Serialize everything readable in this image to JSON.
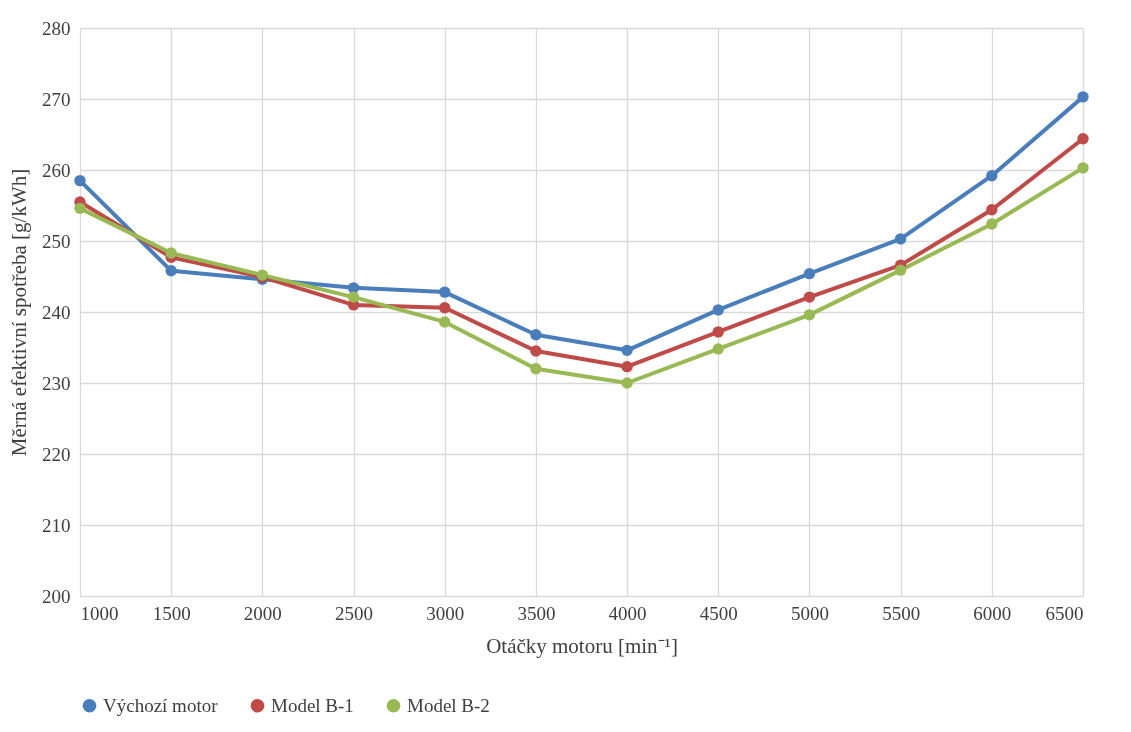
{
  "chart_data": {
    "type": "line",
    "xlabel": "Otáčky motoru [min⁻¹]",
    "ylabel": "Měrná efektivní spotřeba [g/kWh]",
    "x": [
      1000,
      1500,
      2000,
      2500,
      3000,
      3500,
      4000,
      4500,
      5000,
      5500,
      6000,
      6500
    ],
    "series": [
      {
        "name": "Výchozí motor",
        "color": "#4a7ebb",
        "values": [
          258.5,
          245.8,
          244.6,
          243.4,
          242.8,
          236.8,
          234.6,
          240.3,
          245.4,
          250.3,
          259.2,
          270.3
        ]
      },
      {
        "name": "Model B-1",
        "color": "#be4b48",
        "values": [
          255.5,
          247.7,
          244.9,
          241.0,
          240.6,
          234.5,
          232.3,
          237.2,
          242.1,
          246.6,
          254.4,
          264.4
        ]
      },
      {
        "name": "Model B-2",
        "color": "#98b954",
        "values": [
          254.6,
          248.3,
          245.2,
          242.1,
          238.6,
          232.0,
          230.0,
          234.8,
          239.6,
          245.9,
          252.4,
          260.3
        ]
      }
    ],
    "xlim": [
      1000,
      6500
    ],
    "xticks": [
      1000,
      1500,
      2000,
      2500,
      3000,
      3500,
      4000,
      4500,
      5000,
      5500,
      6000,
      6500
    ],
    "ylim": [
      200,
      280
    ],
    "yticks": [
      200,
      210,
      220,
      230,
      240,
      250,
      260,
      270,
      280
    ],
    "grid": true,
    "legend": "bottom",
    "marker": "circle",
    "line_style": "solid"
  }
}
